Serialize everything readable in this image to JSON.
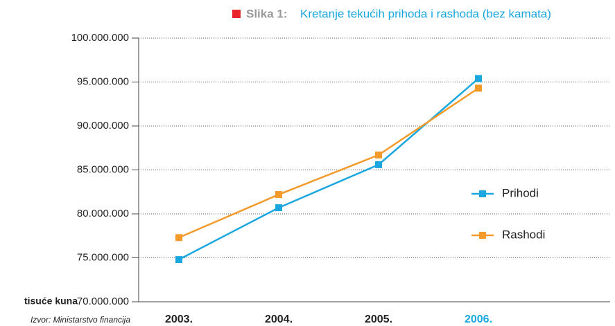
{
  "chart_data": {
    "type": "line",
    "figure_label": "Slika 1:",
    "title": "Kretanje tekućih prihoda i rashoda (bez kamata)",
    "y_axis_label": "tisuće kuna",
    "source": "Izvor: Ministarstvo financija",
    "categories": [
      "2003.",
      "2004.",
      "2005.",
      "2006."
    ],
    "series": [
      {
        "name": "Prihodi",
        "color": "#1aa7e0",
        "values": [
          74800000,
          80700000,
          85600000,
          95400000
        ]
      },
      {
        "name": "Rashodi",
        "color": "#f39a2b",
        "values": [
          77300000,
          82200000,
          86700000,
          94300000
        ]
      }
    ],
    "ylim": [
      70000000,
      100000000
    ],
    "yticks": [
      {
        "value": 70000000,
        "label": "70.000.000"
      },
      {
        "value": 75000000,
        "label": "75.000.000"
      },
      {
        "value": 80000000,
        "label": "80.000.000"
      },
      {
        "value": 85000000,
        "label": "85.000.000"
      },
      {
        "value": 90000000,
        "label": "90.000.000"
      },
      {
        "value": 95000000,
        "label": "95.000.000"
      },
      {
        "value": 100000000,
        "label": "100.000.000"
      }
    ],
    "grid": true,
    "legend": "right"
  }
}
